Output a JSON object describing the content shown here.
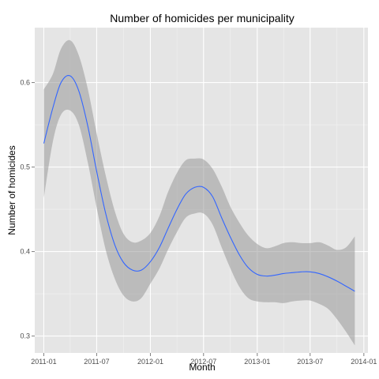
{
  "chart_data": {
    "type": "line",
    "title": "Number of homicides per municipality",
    "xlabel": "Month",
    "ylabel": "Number of homicides",
    "x_ticks": [
      "2011-01",
      "2011-07",
      "2012-01",
      "2012-07",
      "2013-01",
      "2013-07",
      "2014-01"
    ],
    "y_ticks": [
      0.3,
      0.4,
      0.5,
      0.6
    ],
    "xlim": [
      "2010-12-01",
      "2014-01-15"
    ],
    "ylim": [
      0.28,
      0.665
    ],
    "grid": true,
    "legend": "none",
    "colors": {
      "panel": "#e5e5e5",
      "grid": "#ffffff",
      "line": "#3366ff",
      "ribbon": "#999999"
    },
    "series": [
      {
        "x": [
          "2011-01",
          "2011-02",
          "2011-03",
          "2011-04",
          "2011-05",
          "2011-06",
          "2011-07",
          "2011-08",
          "2011-09",
          "2011-10",
          "2011-11",
          "2011-12",
          "2012-01",
          "2012-02",
          "2012-03",
          "2012-04",
          "2012-05",
          "2012-06",
          "2012-07",
          "2012-08",
          "2012-09",
          "2012-10",
          "2012-11",
          "2012-12",
          "2013-01",
          "2013-02",
          "2013-03",
          "2013-04",
          "2013-05",
          "2013-06",
          "2013-07",
          "2013-08",
          "2013-09",
          "2013-10",
          "2013-11",
          "2013-12"
        ],
        "y": [
          0.528,
          0.57,
          0.6,
          0.608,
          0.59,
          0.548,
          0.495,
          0.445,
          0.408,
          0.387,
          0.378,
          0.378,
          0.388,
          0.405,
          0.427,
          0.45,
          0.468,
          0.476,
          0.476,
          0.465,
          0.44,
          0.417,
          0.396,
          0.381,
          0.373,
          0.371,
          0.372,
          0.374,
          0.375,
          0.376,
          0.376,
          0.374,
          0.37,
          0.365,
          0.359,
          0.353
        ],
        "lower": [
          0.463,
          0.53,
          0.562,
          0.567,
          0.55,
          0.505,
          0.452,
          0.402,
          0.368,
          0.348,
          0.341,
          0.345,
          0.362,
          0.38,
          0.402,
          0.423,
          0.44,
          0.445,
          0.445,
          0.432,
          0.405,
          0.38,
          0.358,
          0.345,
          0.341,
          0.34,
          0.34,
          0.339,
          0.341,
          0.342,
          0.342,
          0.338,
          0.332,
          0.32,
          0.305,
          0.289
        ],
        "upper": [
          0.592,
          0.61,
          0.64,
          0.65,
          0.632,
          0.592,
          0.54,
          0.49,
          0.448,
          0.421,
          0.411,
          0.413,
          0.422,
          0.442,
          0.47,
          0.493,
          0.508,
          0.51,
          0.509,
          0.498,
          0.477,
          0.453,
          0.434,
          0.419,
          0.409,
          0.404,
          0.406,
          0.41,
          0.411,
          0.41,
          0.41,
          0.411,
          0.407,
          0.402,
          0.405,
          0.418
        ]
      }
    ]
  }
}
